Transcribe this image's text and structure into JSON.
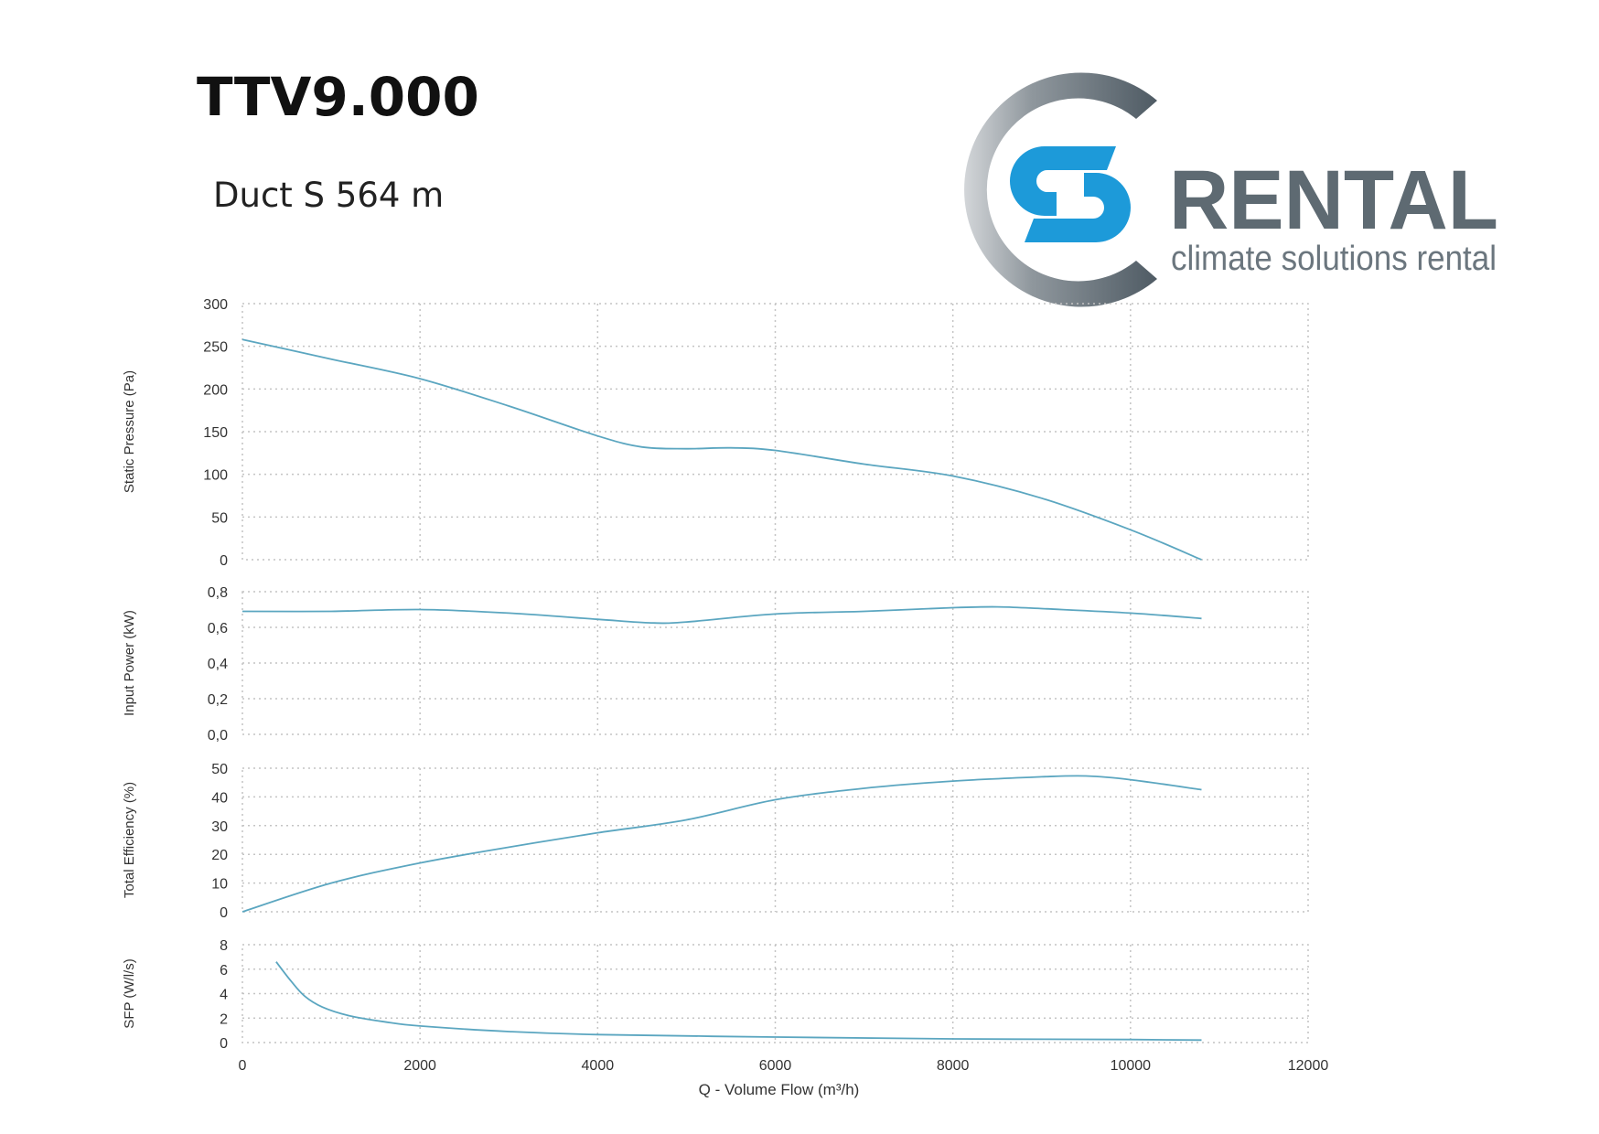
{
  "header": {
    "title": "TTV9.000",
    "subtitle": "Duct S 564 m"
  },
  "logo": {
    "brand": "RENTAL",
    "tagline": "climate solutions rental",
    "colors": {
      "arc_dark": "#4f5b64",
      "arc_light": "#c9cdd1",
      "s_blue": "#1d9ad9",
      "text_gray": "#5e6a72"
    }
  },
  "colors": {
    "curve": "#5ba6c0",
    "grid": "#c4c4c4",
    "text": "#333333"
  },
  "chart_data": [
    {
      "type": "line",
      "ylabel": "Static Pressure (Pa)",
      "ylim": [
        0,
        300
      ],
      "yticks": [
        "0",
        "50",
        "100",
        "150",
        "200",
        "250",
        "300"
      ],
      "xlim": [
        0,
        12000
      ],
      "grid": true,
      "x": [
        0,
        1000,
        2000,
        3000,
        4000,
        4500,
        5000,
        5500,
        6000,
        7000,
        8000,
        9000,
        10000,
        10800
      ],
      "values": [
        258,
        235,
        212,
        180,
        145,
        132,
        130,
        131,
        128,
        112,
        98,
        72,
        35,
        0
      ]
    },
    {
      "type": "line",
      "ylabel": "Input Power (kW)",
      "ylim": [
        0,
        0.8
      ],
      "yticks": [
        "0,0",
        "0,2",
        "0,4",
        "0,6",
        "0,8"
      ],
      "xlim": [
        0,
        12000
      ],
      "grid": true,
      "x": [
        0,
        1000,
        2000,
        3000,
        4000,
        4600,
        5000,
        6000,
        7000,
        8000,
        8500,
        9000,
        10000,
        10800
      ],
      "values": [
        0.69,
        0.69,
        0.7,
        0.68,
        0.645,
        0.625,
        0.63,
        0.675,
        0.69,
        0.71,
        0.715,
        0.705,
        0.68,
        0.65
      ]
    },
    {
      "type": "line",
      "ylabel": "Total Efficiency (%)",
      "ylim": [
        0,
        50
      ],
      "yticks": [
        "0",
        "10",
        "20",
        "30",
        "40",
        "50"
      ],
      "xlim": [
        0,
        12000
      ],
      "grid": true,
      "x": [
        0,
        1000,
        2000,
        3000,
        4000,
        5000,
        6000,
        7000,
        8000,
        9000,
        9500,
        10000,
        10800
      ],
      "values": [
        0,
        10,
        17,
        22.5,
        27.5,
        32,
        39,
        43,
        45.5,
        47,
        47.3,
        46,
        42.5
      ]
    },
    {
      "type": "line",
      "ylabel": "SFP (W/l/s)",
      "ylim": [
        0,
        8
      ],
      "yticks": [
        "0",
        "2",
        "4",
        "6",
        "8"
      ],
      "xlim": [
        0,
        12000
      ],
      "xticks": [
        "0",
        "2000",
        "4000",
        "6000",
        "8000",
        "10000",
        "12000"
      ],
      "xlabel": "Q - Volume Flow (m³/h)",
      "grid": true,
      "x": [
        380,
        550,
        700,
        900,
        1200,
        1600,
        2000,
        3000,
        4000,
        6000,
        8000,
        10000,
        10800
      ],
      "values": [
        6.6,
        5.0,
        3.8,
        2.9,
        2.2,
        1.7,
        1.35,
        0.9,
        0.65,
        0.45,
        0.3,
        0.25,
        0.2
      ]
    }
  ]
}
